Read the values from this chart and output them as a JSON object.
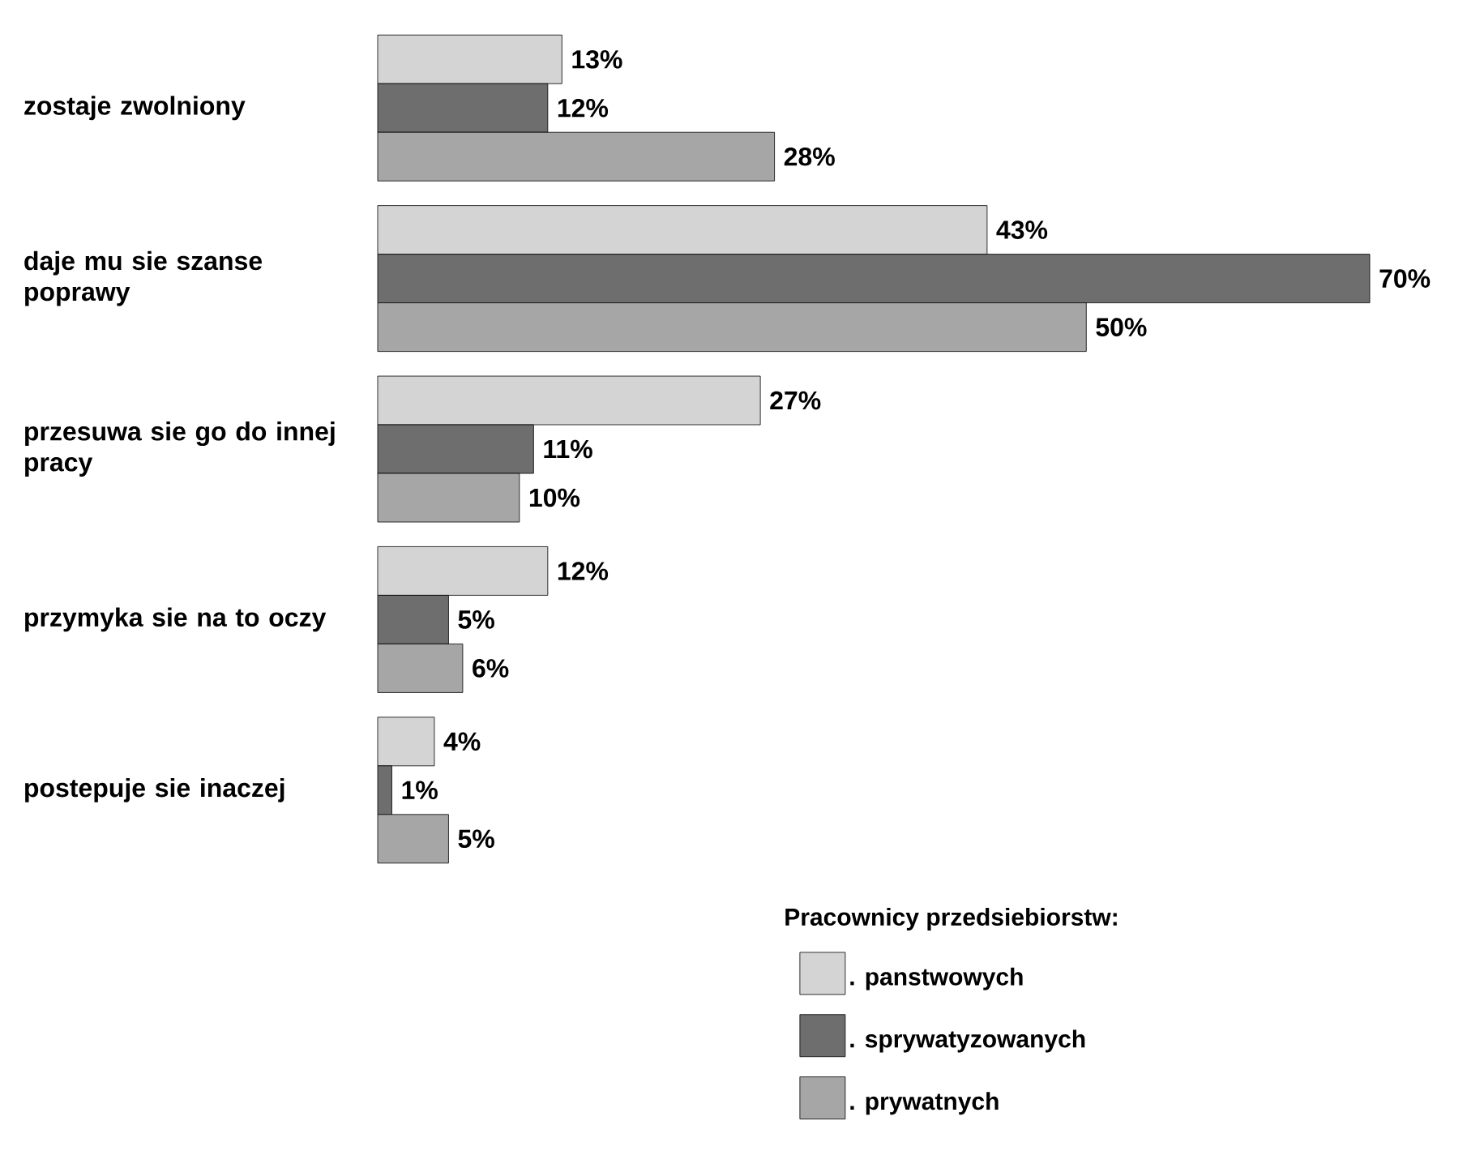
{
  "chart_data": {
    "type": "bar",
    "orientation": "horizontal",
    "categories": [
      "zostaje zwolniony",
      "daje mu sie szanse poprawy",
      "przesuwa sie go do innej pracy",
      "przymyka sie na to oczy",
      "postepuje sie inaczej"
    ],
    "legend_title": "Pracownicy przedsiebiorstw:",
    "legend": "bottom",
    "series": [
      {
        "name": ". panstwowych",
        "color": "#d4d4d4",
        "values": [
          13,
          43,
          27,
          12,
          4
        ],
        "value_labels": [
          "13%",
          "43%",
          "27%",
          "12%",
          "4%"
        ]
      },
      {
        "name": ". sprywatyzowanych",
        "color": "#6e6e6e",
        "values": [
          12,
          70,
          11,
          5,
          1
        ],
        "value_labels": [
          "12%",
          "70%",
          "11%",
          "5%",
          "1%"
        ]
      },
      {
        "name": ". prywatnych",
        "color": "#a6a6a6",
        "values": [
          28,
          50,
          10,
          6,
          5
        ],
        "value_labels": [
          "28%",
          "50%",
          "10%",
          "6%",
          "5%"
        ]
      }
    ]
  }
}
